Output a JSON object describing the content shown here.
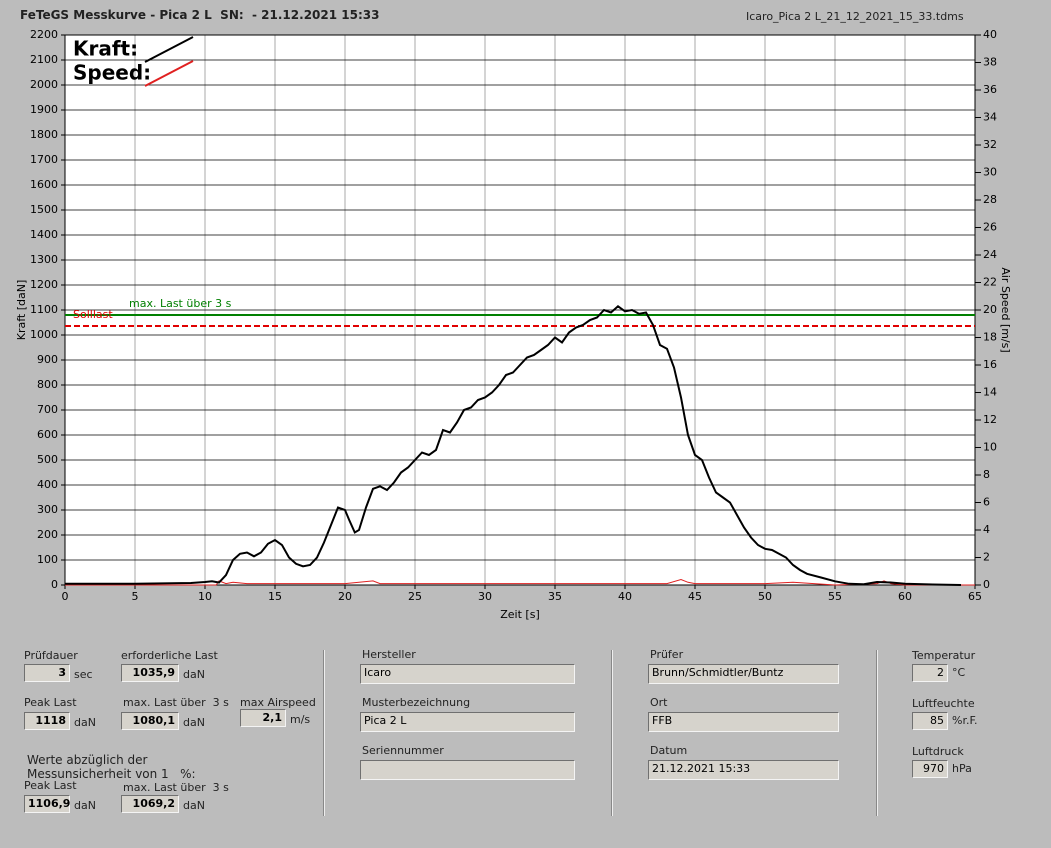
{
  "header": {
    "title": "FeTeGS Messkurve - Pica 2 L  SN:  - 21.12.2021 15:33",
    "file": "Icaro_Pica 2 L_21_12_2021_15_33.tdms"
  },
  "chart_data": {
    "type": "line",
    "xlabel": "Zeit [s]",
    "ylabel": "Kraft [daN]",
    "y2label": "Air Speed [m/s]",
    "xlim": [
      0,
      65
    ],
    "xticks": [
      0,
      5,
      10,
      15,
      20,
      25,
      30,
      35,
      40,
      45,
      50,
      55,
      60,
      65
    ],
    "ylim": [
      0,
      2200
    ],
    "yticks": [
      0,
      100,
      200,
      300,
      400,
      500,
      600,
      700,
      800,
      900,
      1000,
      1100,
      1200,
      1300,
      1400,
      1500,
      1600,
      1700,
      1800,
      1900,
      2000,
      2100,
      2200
    ],
    "y2lim": [
      0,
      40
    ],
    "y2ticks": [
      0,
      2,
      4,
      6,
      8,
      10,
      12,
      14,
      16,
      18,
      20,
      22,
      24,
      26,
      28,
      30,
      32,
      34,
      36,
      38,
      40
    ],
    "grid": true,
    "series": [
      {
        "name": "Kraft:",
        "color": "#000000",
        "x": [
          0,
          5,
          9,
          10,
          10.5,
          11,
          11.5,
          12,
          12.5,
          13,
          13.5,
          14,
          14.5,
          15,
          15.5,
          16,
          16.5,
          17,
          17.5,
          18,
          18.5,
          19,
          19.5,
          20,
          20.3,
          20.7,
          21,
          21.5,
          22,
          22.5,
          23,
          23.5,
          24,
          24.5,
          25,
          25.5,
          26,
          26.5,
          27,
          27.5,
          28,
          28.5,
          29,
          29.5,
          30,
          30.5,
          31,
          31.5,
          32,
          32.5,
          33,
          33.5,
          34,
          34.5,
          35,
          35.5,
          36,
          36.5,
          37,
          37.5,
          38,
          38.5,
          39,
          39.5,
          40,
          40.5,
          41,
          41.5,
          42,
          42.5,
          43,
          43.5,
          44,
          44.5,
          45,
          45.5,
          46,
          46.5,
          47,
          47.5,
          48,
          48.5,
          49,
          49.5,
          50,
          50.5,
          51,
          51.5,
          52,
          52.5,
          53,
          54,
          55,
          56,
          57,
          58,
          59,
          60,
          62,
          64
        ],
        "values": [
          5,
          5,
          8,
          12,
          15,
          10,
          40,
          100,
          125,
          130,
          115,
          130,
          165,
          180,
          160,
          110,
          85,
          75,
          80,
          110,
          170,
          240,
          310,
          300,
          260,
          210,
          220,
          310,
          385,
          395,
          380,
          410,
          450,
          470,
          500,
          530,
          520,
          540,
          620,
          610,
          650,
          700,
          710,
          740,
          750,
          770,
          800,
          840,
          850,
          880,
          910,
          920,
          940,
          960,
          990,
          970,
          1010,
          1030,
          1040,
          1060,
          1070,
          1100,
          1090,
          1115,
          1095,
          1100,
          1085,
          1090,
          1040,
          960,
          945,
          870,
          750,
          600,
          520,
          500,
          430,
          370,
          350,
          330,
          280,
          230,
          190,
          160,
          145,
          140,
          125,
          110,
          80,
          60,
          45,
          30,
          15,
          5,
          3,
          12,
          10,
          5,
          2,
          0
        ]
      },
      {
        "name": "Speed:",
        "color": "#e02020",
        "axis": "y2",
        "x": [
          0,
          10.8,
          11,
          11.5,
          12,
          13,
          15,
          18,
          20,
          22,
          22.5,
          25,
          30,
          35,
          40,
          43,
          44,
          44.5,
          45,
          50,
          52,
          55,
          58,
          58.5,
          59,
          60,
          65
        ],
        "values": [
          0,
          0,
          0.3,
          0.1,
          0.2,
          0.1,
          0.1,
          0.1,
          0.1,
          0.3,
          0.1,
          0.1,
          0.1,
          0.1,
          0.1,
          0.1,
          0.4,
          0.2,
          0.1,
          0.1,
          0.2,
          0,
          0.1,
          0.3,
          0.1,
          0,
          0
        ]
      }
    ],
    "annotations": [
      {
        "label": "max. Last über  3 s",
        "value": 1080.1,
        "color": "#008000",
        "dashed": false
      },
      {
        "label": "Solllast",
        "value": 1035.9,
        "color": "#e00000",
        "dashed": true
      }
    ]
  },
  "form": {
    "fields": [
      {
        "label": "Prüfdauer",
        "value": "3",
        "unit": "sec"
      },
      {
        "label": "erforderliche Last",
        "value": "1035,9",
        "unit": "daN"
      },
      {
        "label": "Peak Last",
        "value": "1118",
        "unit": "daN"
      },
      {
        "label": "max. Last über  3 s",
        "value": "1080,1",
        "unit": "daN"
      },
      {
        "label": "max Airspeed",
        "value": "2,1",
        "unit": "m/s"
      },
      {
        "label": "Peak Last",
        "value": "1106,9",
        "unit": "daN"
      },
      {
        "label": "max. Last über  3 s",
        "value": "1069,2",
        "unit": "daN"
      },
      {
        "label": "Hersteller",
        "value": "Icaro"
      },
      {
        "label": "Musterbezeichnung",
        "value": "Pica 2 L"
      },
      {
        "label": "Seriennummer"
      },
      {
        "label": "Prüfer",
        "value": "Brunn/Schmidtler/Buntz"
      },
      {
        "label": "Ort",
        "value": "FFB"
      },
      {
        "label": "Datum",
        "value": "21.12.2021 15:33"
      },
      {
        "label": "Temperatur",
        "value": "2",
        "unit": "°C"
      },
      {
        "label": "Luftfeuchte",
        "value": "85",
        "unit": "%r.F."
      },
      {
        "label": "Luftdruck",
        "value": "970",
        "unit": "hPa"
      }
    ],
    "note": [
      "Werte abzüglich der",
      "Messunsicherheit von 1   %:"
    ]
  }
}
